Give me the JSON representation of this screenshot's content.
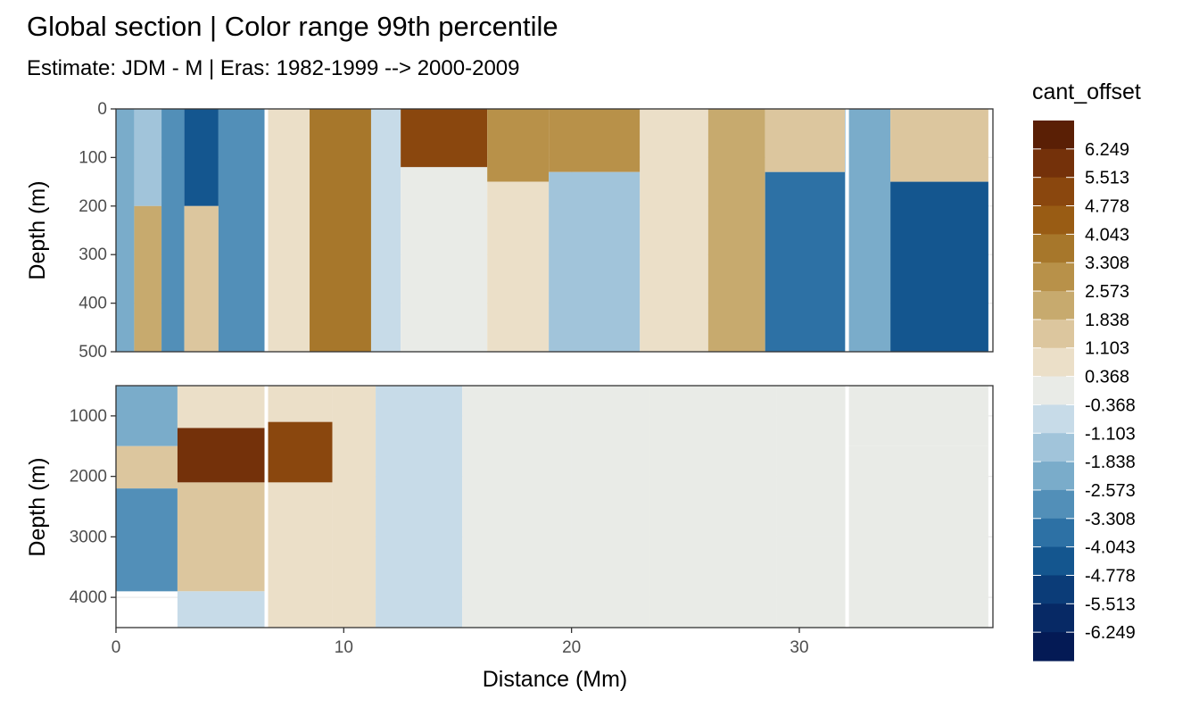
{
  "chart_data": {
    "type": "heatmap",
    "title": "Global section | Color range 99th percentile",
    "subtitle": "Estimate: JDM - M | Eras: 1982-1999 --> 2000-2009",
    "xlabel": "Distance (Mm)",
    "ylabel": "Depth (m)",
    "xlim": [
      0,
      38.5
    ],
    "x_ticks": [
      "0",
      "10",
      "20",
      "30"
    ],
    "x_tick_values": [
      0,
      10,
      20,
      30
    ],
    "grid": true,
    "legend_position": "right",
    "legend": {
      "title": "cant_offset",
      "breaks": [
        "6.249",
        "5.513",
        "4.778",
        "4.043",
        "3.308",
        "2.573",
        "1.838",
        "1.103",
        "0.368",
        "-0.368",
        "-1.103",
        "-1.838",
        "-2.573",
        "-3.308",
        "-4.043",
        "-4.778",
        "-5.513",
        "-6.249"
      ],
      "colors": [
        "#5a1f05",
        "#74310a",
        "#8a470e",
        "#995c14",
        "#a7772b",
        "#b89149",
        "#c7aa6e",
        "#dcc69e",
        "#ebdfc8",
        "#e9ebe7",
        "#c7dbe8",
        "#a1c4da",
        "#7aacca",
        "#528fb8",
        "#2d71a5",
        "#14568f",
        "#0b3c78",
        "#072965",
        "#041a55"
      ]
    },
    "panels": [
      {
        "name": "upper",
        "ylim": [
          500,
          0
        ],
        "y_ticks": [
          "0",
          "100",
          "200",
          "300",
          "400",
          "500"
        ],
        "y_tick_values": [
          0,
          100,
          200,
          300,
          400,
          500
        ],
        "blocks": [
          {
            "x": [
              0,
              0.8
            ],
            "y": [
              0,
              500
            ],
            "v": -2.5
          },
          {
            "x": [
              0.8,
              2.0
            ],
            "y": [
              0,
              200
            ],
            "v": -1.5
          },
          {
            "x": [
              0.8,
              2.0
            ],
            "y": [
              200,
              500
            ],
            "v": 2.5
          },
          {
            "x": [
              2.0,
              3.0
            ],
            "y": [
              0,
              500
            ],
            "v": -2.6
          },
          {
            "x": [
              3.0,
              4.5
            ],
            "y": [
              0,
              200
            ],
            "v": -4.5
          },
          {
            "x": [
              3.0,
              4.5
            ],
            "y": [
              200,
              500
            ],
            "v": 1.2
          },
          {
            "x": [
              4.5,
              6.6
            ],
            "y": [
              0,
              500
            ],
            "v": -2.8
          },
          {
            "x": [
              6.6,
              8.5
            ],
            "y": [
              0,
              500
            ],
            "v": 0.8
          },
          {
            "x": [
              8.5,
              11.2
            ],
            "y": [
              0,
              500
            ],
            "v": 3.6
          },
          {
            "x": [
              11.2,
              12.5
            ],
            "y": [
              0,
              500
            ],
            "v": -0.8
          },
          {
            "x": [
              12.5,
              16.3
            ],
            "y": [
              0,
              120
            ],
            "v": 5.4
          },
          {
            "x": [
              12.5,
              16.3
            ],
            "y": [
              120,
              500
            ],
            "v": -0.2
          },
          {
            "x": [
              16.3,
              19.0
            ],
            "y": [
              0,
              150
            ],
            "v": 3.0
          },
          {
            "x": [
              16.3,
              19.0
            ],
            "y": [
              150,
              500
            ],
            "v": 0.4
          },
          {
            "x": [
              19.0,
              23.0
            ],
            "y": [
              0,
              130
            ],
            "v": 2.8
          },
          {
            "x": [
              19.0,
              23.0
            ],
            "y": [
              130,
              500
            ],
            "v": -1.5
          },
          {
            "x": [
              23.0,
              26.0
            ],
            "y": [
              0,
              500
            ],
            "v": 0.6
          },
          {
            "x": [
              26.0,
              28.5
            ],
            "y": [
              0,
              500
            ],
            "v": 2.3
          },
          {
            "x": [
              28.5,
              32.0
            ],
            "y": [
              0,
              130
            ],
            "v": 1.6
          },
          {
            "x": [
              28.5,
              32.0
            ],
            "y": [
              130,
              500
            ],
            "v": -3.5
          },
          {
            "x": [
              32.0,
              34.0
            ],
            "y": [
              0,
              500
            ],
            "v": -2.0
          },
          {
            "x": [
              34.0,
              38.3
            ],
            "y": [
              0,
              150
            ],
            "v": 1.4
          },
          {
            "x": [
              34.0,
              38.3
            ],
            "y": [
              150,
              500
            ],
            "v": -4.6
          }
        ]
      },
      {
        "name": "lower",
        "ylim": [
          4500,
          500
        ],
        "y_ticks": [
          "1000",
          "2000",
          "3000",
          "4000"
        ],
        "y_tick_values": [
          1000,
          2000,
          3000,
          4000
        ],
        "blocks": [
          {
            "x": [
              0,
              2.7
            ],
            "y": [
              500,
              1500
            ],
            "v": -2.1
          },
          {
            "x": [
              0,
              2.7
            ],
            "y": [
              1500,
              2200
            ],
            "v": 1.2
          },
          {
            "x": [
              0,
              2.7
            ],
            "y": [
              2200,
              3900
            ],
            "v": -2.6
          },
          {
            "x": [
              2.7,
              6.6
            ],
            "y": [
              500,
              1200
            ],
            "v": 0.9
          },
          {
            "x": [
              2.7,
              6.6
            ],
            "y": [
              1200,
              2100
            ],
            "v": 5.6
          },
          {
            "x": [
              2.7,
              6.6
            ],
            "y": [
              2100,
              3900
            ],
            "v": 1.6
          },
          {
            "x": [
              2.7,
              6.6
            ],
            "y": [
              3900,
              4500
            ],
            "v": -0.7
          },
          {
            "x": [
              6.6,
              9.5
            ],
            "y": [
              500,
              1100
            ],
            "v": 0.8
          },
          {
            "x": [
              6.6,
              9.5
            ],
            "y": [
              1100,
              2100
            ],
            "v": 4.9
          },
          {
            "x": [
              6.6,
              9.5
            ],
            "y": [
              2100,
              4500
            ],
            "v": 0.8
          },
          {
            "x": [
              9.5,
              11.4
            ],
            "y": [
              500,
              4500
            ],
            "v": 0.6
          },
          {
            "x": [
              11.4,
              15.2
            ],
            "y": [
              500,
              4500
            ],
            "v": -0.4
          },
          {
            "x": [
              15.2,
              20.0
            ],
            "y": [
              500,
              4500
            ],
            "v": 0.1
          },
          {
            "x": [
              20.0,
              23.4
            ],
            "y": [
              500,
              4500
            ],
            "v": 0.2
          },
          {
            "x": [
              23.4,
              29.0
            ],
            "y": [
              500,
              4500
            ],
            "v": -0.1
          },
          {
            "x": [
              29.0,
              32.0
            ],
            "y": [
              500,
              3000
            ],
            "v": 0.3
          },
          {
            "x": [
              29.0,
              32.0
            ],
            "y": [
              3000,
              4500
            ],
            "v": 0.0
          },
          {
            "x": [
              32.0,
              38.3
            ],
            "y": [
              500,
              1500
            ],
            "v": 0.3
          },
          {
            "x": [
              32.0,
              38.3
            ],
            "y": [
              1500,
              4500
            ],
            "v": 0.0
          }
        ]
      }
    ],
    "gaps_x": [
      6.6,
      32.1
    ]
  }
}
